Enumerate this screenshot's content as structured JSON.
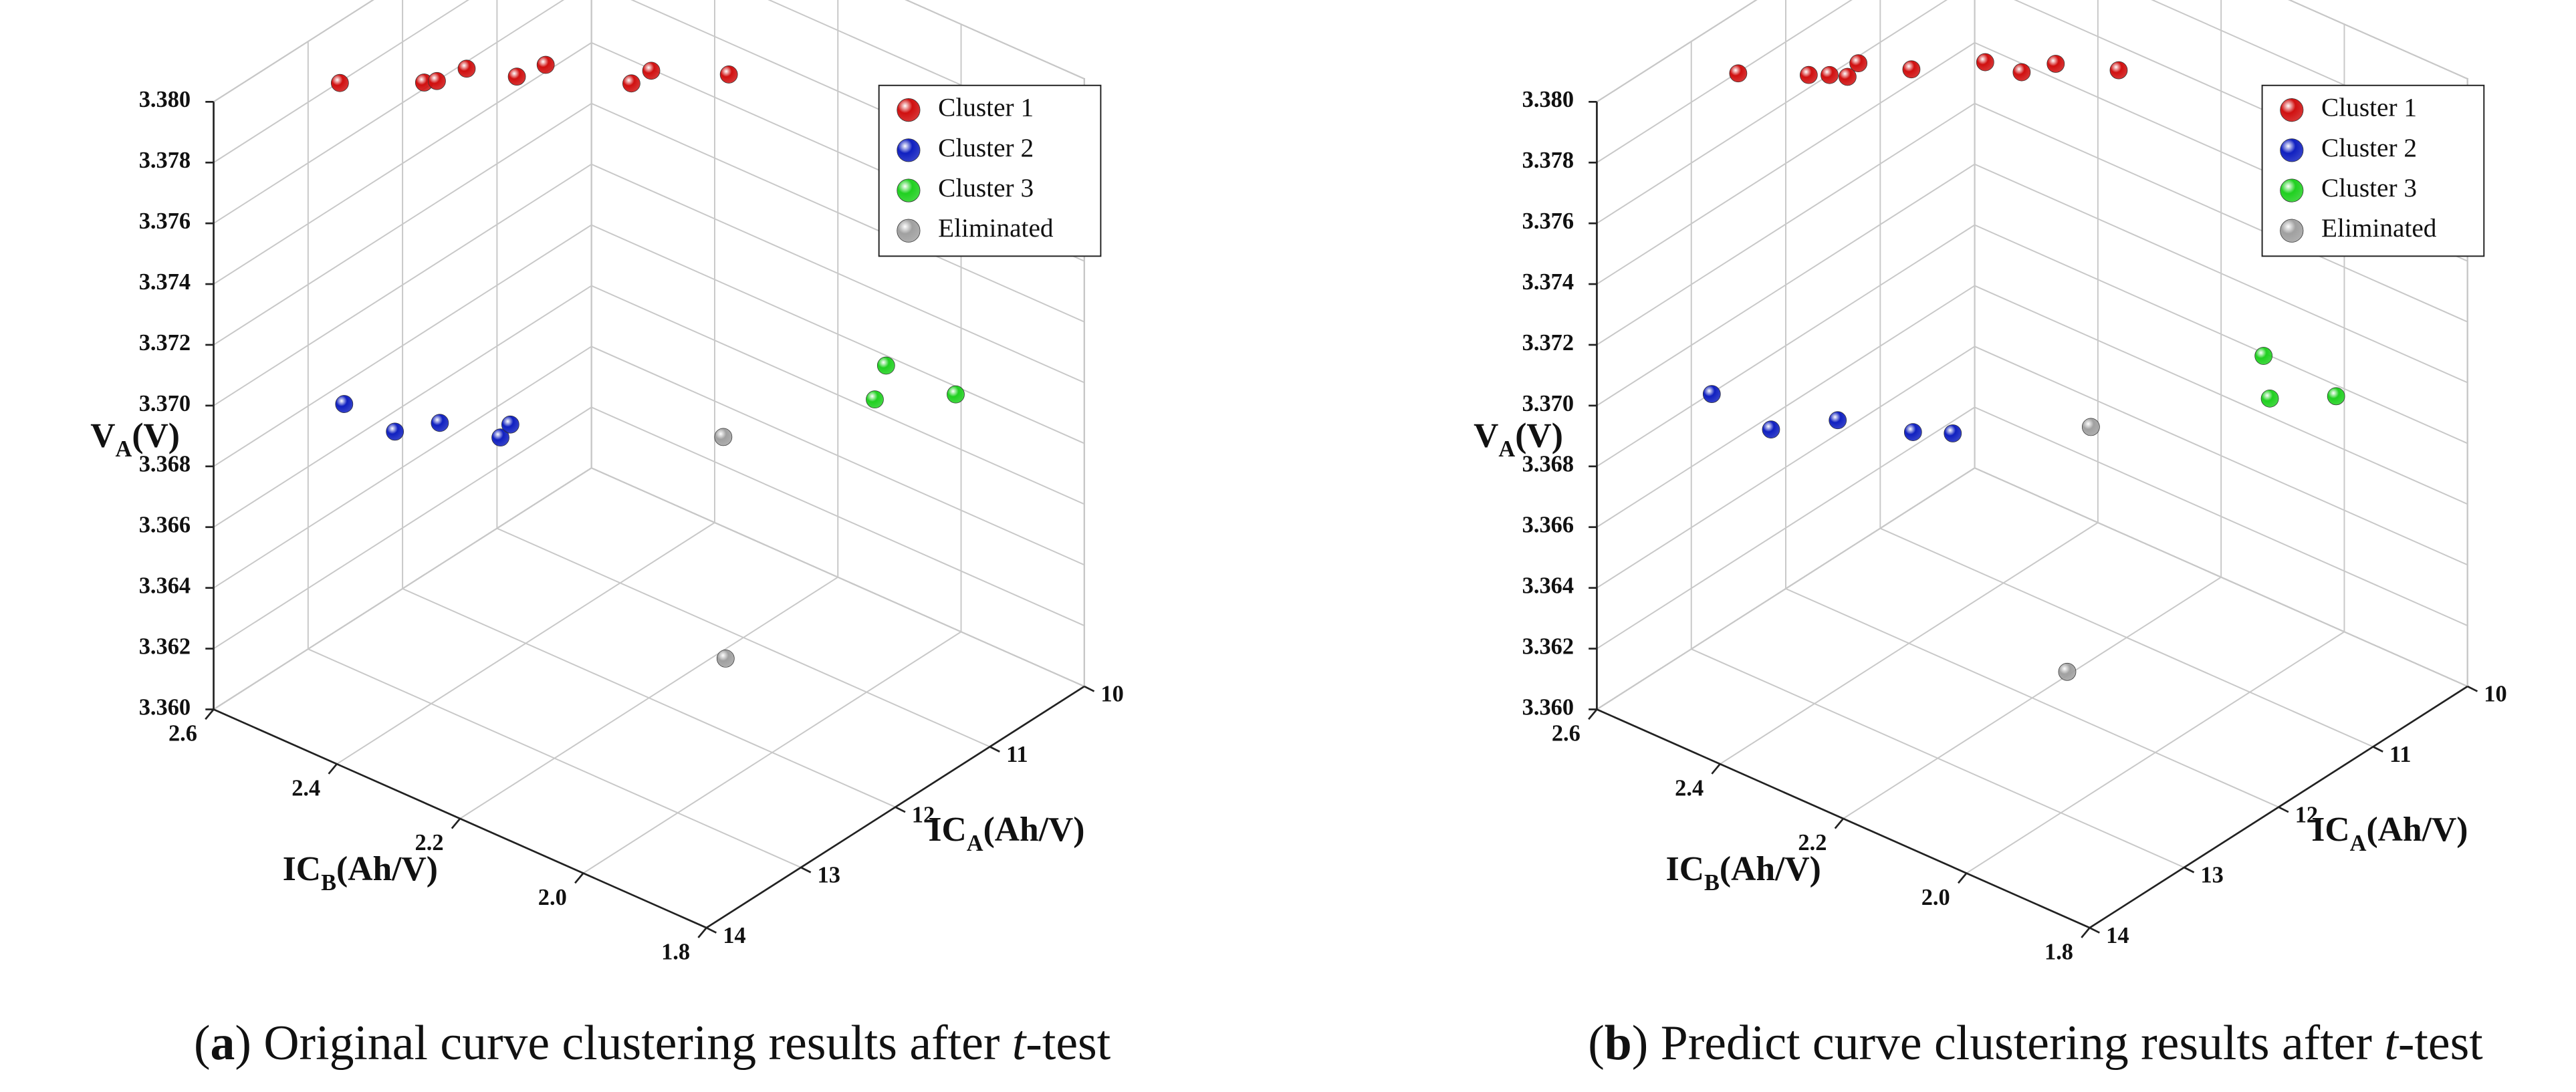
{
  "chart_data": [
    {
      "type": "scatter3d",
      "caption": [
        "(",
        "a",
        ") Original curve clustering results after ",
        "t",
        "-test"
      ],
      "xlabel": [
        "IC",
        "A",
        "(Ah/V)"
      ],
      "ylabel": [
        "IC",
        "B",
        "(Ah/V)"
      ],
      "zlabel": [
        "V",
        "A",
        "(V)"
      ],
      "xlim": [
        10,
        14
      ],
      "xticks": [
        10,
        11,
        12,
        13,
        14
      ],
      "ylim": [
        1.8,
        2.6
      ],
      "yticks": [
        1.8,
        {
          "value": 2.0,
          "label": "2.0"
        },
        2.2,
        2.4,
        2.6
      ],
      "zlim": [
        3.36,
        3.38
      ],
      "zticks": [
        {
          "value": 3.36,
          "label": "3.360"
        },
        3.362,
        3.364,
        3.366,
        3.368,
        {
          "value": 3.37,
          "label": "3.370"
        },
        3.372,
        3.374,
        3.376,
        3.378,
        {
          "value": 3.38,
          "label": "3.380"
        }
      ],
      "grid": true,
      "legend": "upper right",
      "series": [
        {
          "name": "Cluster 1",
          "color": "#d01010",
          "x": [
            13.12,
            12.75,
            12.68,
            12.43,
            12.29,
            12.05,
            11.86,
            11.65,
            11.35
          ],
          "y": [
            2.53,
            2.45,
            2.44,
            2.43,
            2.37,
            2.36,
            2.25,
            2.25,
            2.17
          ],
          "z": [
            3.3795,
            3.3795,
            3.3795,
            3.3795,
            3.3795,
            3.3795,
            3.3795,
            3.3795,
            3.3795
          ]
        },
        {
          "name": "Cluster 2",
          "color": "#1020c0",
          "x": [
            13.27,
            13.32,
            13.04,
            12.92,
            12.75
          ],
          "y": [
            2.5,
            2.41,
            2.38,
            2.3,
            2.31
          ],
          "z": [
            3.3695,
            3.3695,
            3.3695,
            3.3695,
            3.3695
          ]
        },
        {
          "name": "Cluster 3",
          "color": "#20d020",
          "x": [
            10.99,
            11.37,
            10.97
          ],
          "y": [
            1.97,
            1.93,
            1.86
          ],
          "z": [
            3.371,
            3.371,
            3.371
          ]
        },
        {
          "name": "Eliminated",
          "color": "#a0a0a0",
          "x": [
            11.8,
            11.58
          ],
          "y": [
            2.11,
            2.14
          ],
          "z": [
            3.369,
            3.361
          ]
        }
      ]
    },
    {
      "type": "scatter3d",
      "caption": [
        "(",
        "b",
        ") Predict curve clustering results after ",
        "t",
        "-test"
      ],
      "xlabel": [
        "IC",
        "A",
        "(Ah/V)"
      ],
      "ylabel": [
        "IC",
        "B",
        "(Ah/V)"
      ],
      "zlabel": [
        "V",
        "A",
        "(V)"
      ],
      "xlim": [
        10,
        14
      ],
      "xticks": [
        10,
        11,
        12,
        13,
        14
      ],
      "ylim": [
        1.8,
        2.6
      ],
      "yticks": [
        1.8,
        {
          "value": 2.0,
          "label": "2.0"
        },
        2.2,
        2.4,
        2.6
      ],
      "zlim": [
        3.36,
        3.38
      ],
      "zticks": [
        {
          "value": 3.36,
          "label": "3.360"
        },
        3.362,
        3.364,
        3.366,
        3.368,
        {
          "value": 3.37,
          "label": "3.370"
        },
        3.372,
        3.374,
        3.376,
        3.378,
        {
          "value": 3.38,
          "label": "3.380"
        }
      ],
      "grid": true,
      "legend": "upper right",
      "series": [
        {
          "name": "Cluster 1",
          "color": "#d01010",
          "x": [
            12.96,
            12.67,
            12.58,
            12.52,
            12.34,
            12.17,
            11.78,
            11.72,
            11.49,
            11.28
          ],
          "y": [
            2.53,
            2.46,
            2.44,
            2.42,
            2.43,
            2.37,
            2.31,
            2.26,
            2.24,
            2.17
          ],
          "z": [
            3.3795,
            3.3795,
            3.3795,
            3.3795,
            3.3795,
            3.3795,
            3.3795,
            3.3795,
            3.3795,
            3.3795
          ]
        },
        {
          "name": "Cluster 2",
          "color": "#1020c0",
          "x": [
            13.24,
            13.33,
            12.95,
            12.74,
            12.58
          ],
          "y": [
            2.53,
            2.42,
            2.37,
            2.28,
            2.24
          ],
          "z": [
            3.3695,
            3.3695,
            3.3695,
            3.3695,
            3.3695
          ]
        },
        {
          "name": "Cluster 3",
          "color": "#20d020",
          "x": [
            10.92,
            11.31,
            11.0
          ],
          "y": [
            1.99,
            1.92,
            1.86
          ],
          "z": [
            3.371,
            3.371,
            3.371
          ]
        },
        {
          "name": "Eliminated",
          "color": "#a0a0a0",
          "x": [
            11.77,
            11.89
          ],
          "y": [
            2.14,
            2.16
          ],
          "z": [
            3.369,
            3.361
          ]
        }
      ]
    }
  ]
}
